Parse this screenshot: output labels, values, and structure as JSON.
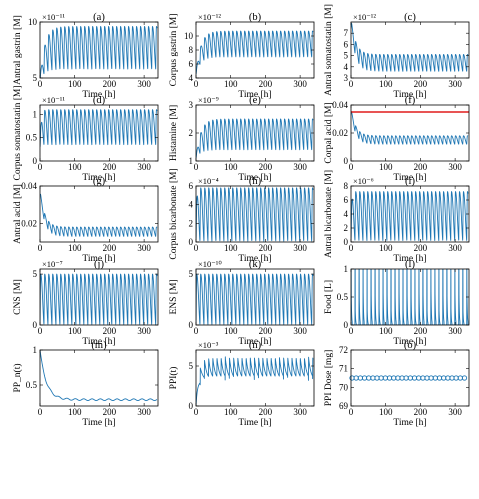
{
  "chart_data": [
    {
      "id": "a",
      "type": "line",
      "title": "(a)",
      "ylabel": "Antral gastrin [M]",
      "xlabel": "Time [h]",
      "exponent": "×10⁻¹¹",
      "xlim": [
        0,
        340
      ],
      "ylim": [
        5,
        10
      ],
      "xticks": [
        0,
        100,
        200,
        300
      ],
      "yticks": [
        5,
        10
      ],
      "series": [
        {
          "pattern": "osc",
          "start": 4.8,
          "hi": 9.6,
          "lo": 5.8,
          "period": 11.5,
          "settle": 40
        }
      ]
    },
    {
      "id": "b",
      "type": "line",
      "title": "(b)",
      "ylabel": "Corpus gastrin [M]",
      "xlabel": "Time [h]",
      "exponent": "×10⁻¹²",
      "xlim": [
        0,
        340
      ],
      "ylim": [
        4,
        12
      ],
      "xticks": [
        0,
        100,
        200,
        300
      ],
      "yticks": [
        4,
        6,
        8,
        10
      ],
      "series": [
        {
          "pattern": "osc",
          "start": 4.5,
          "hi": 10.7,
          "lo": 7.0,
          "period": 11.5,
          "settle": 40
        }
      ]
    },
    {
      "id": "c",
      "type": "line",
      "title": "(c)",
      "ylabel": "Antral somatostatin [M]",
      "xlabel": "Time [h]",
      "exponent": "×10⁻¹²",
      "xlim": [
        0,
        340
      ],
      "ylim": [
        3,
        8
      ],
      "xticks": [
        0,
        100,
        200,
        300
      ],
      "yticks": [
        3,
        4,
        5,
        6,
        7
      ],
      "series": [
        {
          "pattern": "decay",
          "start": 7.4,
          "hi": 5.1,
          "lo": 3.6,
          "period": 11.5,
          "settle": 40
        }
      ]
    },
    {
      "id": "d",
      "type": "line",
      "title": "(d)",
      "ylabel": "Corpus somatostatin [M]",
      "xlabel": "Time [h]",
      "exponent": "×10⁻¹¹",
      "xlim": [
        0,
        340
      ],
      "ylim": [
        0,
        1.2
      ],
      "xticks": [
        0,
        100,
        200,
        300
      ],
      "yticks": [
        0,
        0.5,
        1
      ],
      "series": [
        {
          "pattern": "osc",
          "start": 0.3,
          "hi": 1.1,
          "lo": 0.35,
          "period": 11.5,
          "settle": 10
        }
      ]
    },
    {
      "id": "e",
      "type": "line",
      "title": "(e)",
      "ylabel": "Histamine [M]",
      "xlabel": "Time [h]",
      "exponent": "×10⁻⁹",
      "xlim": [
        0,
        340
      ],
      "ylim": [
        1,
        3
      ],
      "xticks": [
        0,
        100,
        200,
        300
      ],
      "yticks": [
        1,
        2,
        3
      ],
      "series": [
        {
          "pattern": "osc",
          "start": 1.1,
          "hi": 2.5,
          "lo": 1.4,
          "period": 11.5,
          "settle": 40
        }
      ]
    },
    {
      "id": "f",
      "type": "line",
      "title": "(f)",
      "ylabel": "Corpal acid [M]",
      "xlabel": "Time [h]",
      "xlim": [
        0,
        340
      ],
      "ylim": [
        0,
        0.04
      ],
      "xticks": [
        0,
        100,
        200,
        300
      ],
      "yticks": [
        0,
        0.02,
        0.04
      ],
      "reference_line": {
        "y": 0.035,
        "color": "#e11b1b"
      },
      "series": [
        {
          "pattern": "decay",
          "start": 0.034,
          "hi": 0.018,
          "lo": 0.012,
          "period": 11.5,
          "settle": 40
        }
      ]
    },
    {
      "id": "g",
      "type": "line",
      "title": "(g)",
      "ylabel": "Antral acid [M]",
      "xlabel": "Time [h]",
      "xlim": [
        0,
        340
      ],
      "ylim": [
        0.01,
        0.04
      ],
      "xticks": [
        0,
        100,
        200,
        300
      ],
      "yticks": [
        0.02,
        0.04
      ],
      "series": [
        {
          "pattern": "decay",
          "start": 0.035,
          "hi": 0.018,
          "lo": 0.013,
          "period": 11.5,
          "settle": 40
        }
      ]
    },
    {
      "id": "h",
      "type": "line",
      "title": "(h)",
      "ylabel": "Corpus bicarbonate [M]",
      "xlabel": "Time [h]",
      "exponent": "×10⁻⁴",
      "xlim": [
        0,
        340
      ],
      "ylim": [
        0,
        6
      ],
      "xticks": [
        0,
        100,
        200,
        300
      ],
      "yticks": [
        0,
        2,
        4,
        6
      ],
      "series": [
        {
          "pattern": "osc",
          "start": 0.2,
          "hi": 5.8,
          "lo": 0.1,
          "period": 11.5,
          "settle": 5
        }
      ]
    },
    {
      "id": "i",
      "type": "line",
      "title": "(i)",
      "ylabel": "Antral bicarbonate [M]",
      "xlabel": "Time [h]",
      "exponent": "×10⁻⁶",
      "xlim": [
        0,
        340
      ],
      "ylim": [
        0,
        8
      ],
      "xticks": [
        0,
        100,
        200,
        300
      ],
      "yticks": [
        0,
        2,
        4,
        6,
        8
      ],
      "series": [
        {
          "pattern": "osc",
          "start": 0.3,
          "hi": 7.2,
          "lo": 0.2,
          "period": 11.5,
          "settle": 5
        }
      ]
    },
    {
      "id": "j",
      "type": "line",
      "title": "(j)",
      "ylabel": "CNS [M]",
      "xlabel": "Time [h]",
      "exponent": "×10⁻⁷",
      "xlim": [
        0,
        340
      ],
      "ylim": [
        0,
        5.5
      ],
      "xticks": [
        0,
        100,
        200,
        300
      ],
      "yticks": [
        0,
        5
      ],
      "series": [
        {
          "pattern": "osc",
          "start": 0.1,
          "hi": 5.0,
          "lo": 0.05,
          "period": 11.5,
          "settle": 1
        }
      ]
    },
    {
      "id": "k",
      "type": "line",
      "title": "(k)",
      "ylabel": "ENS [M]",
      "xlabel": "Time [h]",
      "exponent": "×10⁻¹⁰",
      "xlim": [
        0,
        340
      ],
      "ylim": [
        0,
        5.5
      ],
      "xticks": [
        0,
        100,
        200,
        300
      ],
      "yticks": [
        0,
        5
      ],
      "series": [
        {
          "pattern": "osc",
          "start": 0.1,
          "hi": 5.0,
          "lo": 0.05,
          "period": 11.5,
          "settle": 1
        }
      ]
    },
    {
      "id": "l",
      "type": "line",
      "title": "(l)",
      "ylabel": "Food [L]",
      "xlabel": "Time [h]",
      "xlim": [
        0,
        340
      ],
      "ylim": [
        0,
        1
      ],
      "xticks": [
        0,
        100,
        200,
        300
      ],
      "yticks": [
        0,
        0.5,
        1
      ],
      "series": [
        {
          "pattern": "spikes",
          "hi": 1.0,
          "mid": 0.6,
          "period": 11.5
        }
      ]
    },
    {
      "id": "m",
      "type": "line",
      "title": "(m)",
      "ylabel": "PP_n(t)",
      "xlabel": "Time [h]",
      "xlim": [
        0,
        340
      ],
      "ylim": [
        0.2,
        1
      ],
      "xticks": [
        0,
        100,
        200,
        300
      ],
      "yticks": [
        0.5,
        1
      ],
      "series": [
        {
          "pattern": "pp",
          "start": 1.0,
          "floor": 0.29,
          "tau": 18,
          "period": 24
        }
      ]
    },
    {
      "id": "n",
      "type": "line",
      "title": "(n)",
      "ylabel": "PPI(t)",
      "xlabel": "Time [h]",
      "exponent": "×10⁻³",
      "xlim": [
        0,
        340
      ],
      "ylim": [
        0,
        7
      ],
      "xticks": [
        0,
        100,
        200,
        300
      ],
      "yticks": [
        0,
        5
      ],
      "series": [
        {
          "pattern": "ppi",
          "hi": 6.2,
          "lo": 3.2,
          "period": 12
        }
      ]
    },
    {
      "id": "o",
      "type": "scatter",
      "title": "(o)",
      "ylabel": "PPI Dose [mg]",
      "xlabel": "Time [h]",
      "xlim": [
        0,
        340
      ],
      "ylim": [
        69,
        72
      ],
      "xticks": [
        0,
        100,
        200,
        300
      ],
      "yticks": [
        69,
        70,
        71,
        72
      ],
      "series": [
        {
          "pattern": "const",
          "value": 70.5,
          "step": 12
        }
      ]
    }
  ]
}
